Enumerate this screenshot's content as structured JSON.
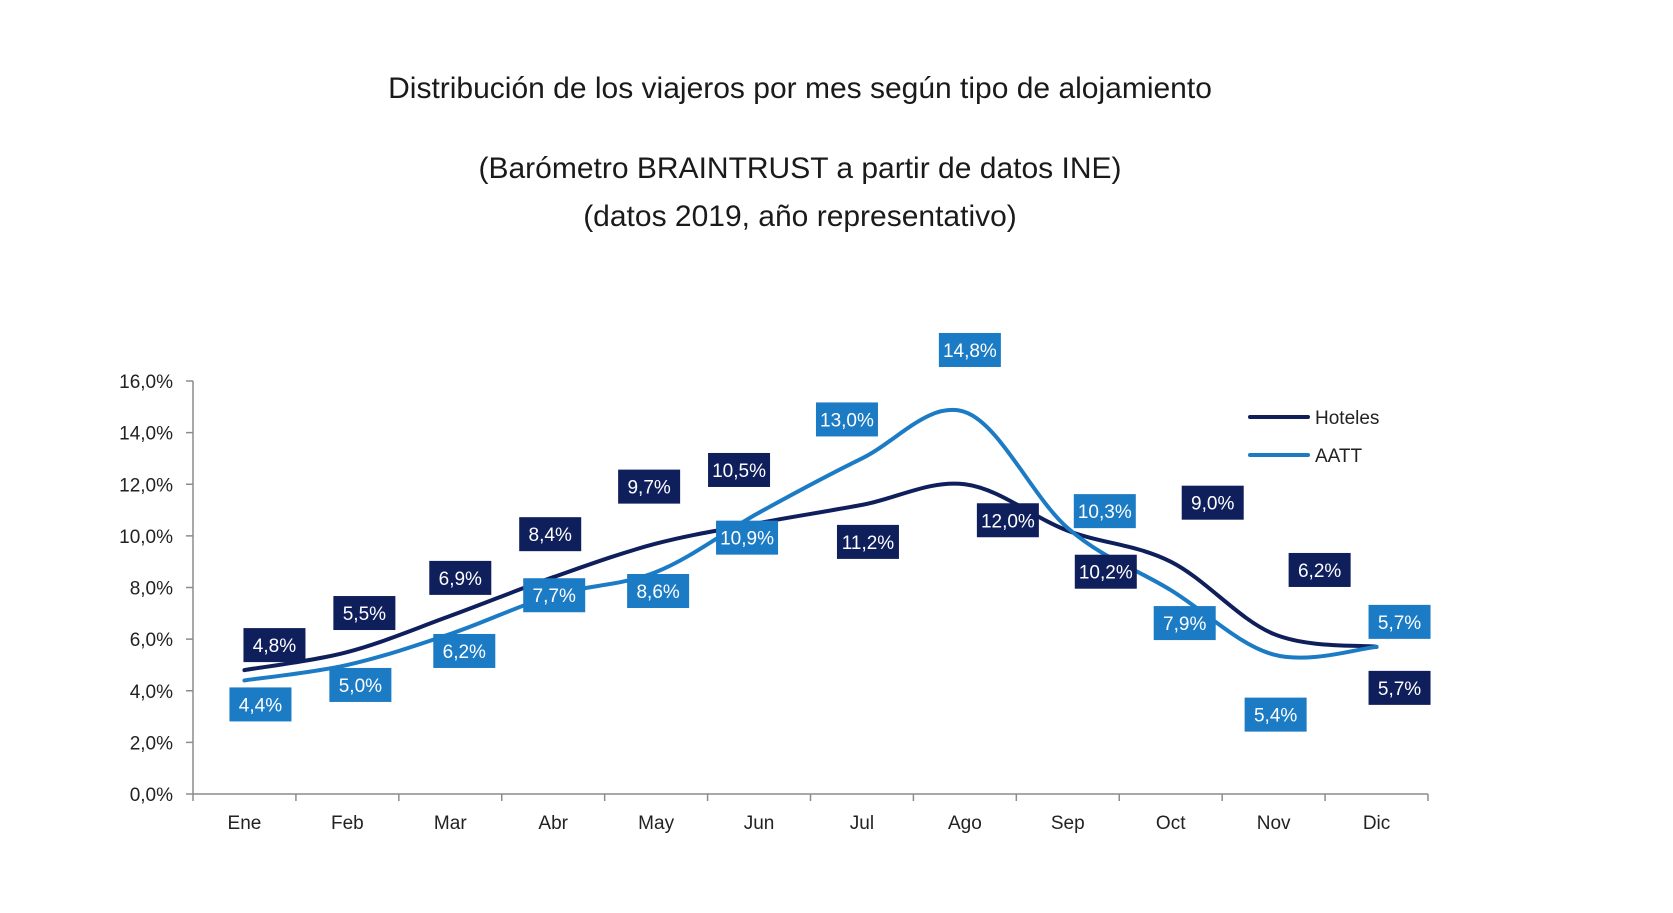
{
  "chart_data": {
    "type": "line",
    "title": "Distribución de los viajeros por mes según tipo de alojamiento",
    "subtitle_lines": [
      "(Barómetro BRAINTRUST a partir de datos INE)",
      "(datos 2019, año representativo)"
    ],
    "categories": [
      "Ene",
      "Feb",
      "Mar",
      "Abr",
      "May",
      "Jun",
      "Jul",
      "Ago",
      "Sep",
      "Oct",
      "Nov",
      "Dic"
    ],
    "series": [
      {
        "name": "Hoteles",
        "color": "#0f1f5c",
        "values": [
          4.8,
          5.5,
          6.9,
          8.4,
          9.7,
          10.5,
          11.2,
          12.0,
          10.2,
          9.0,
          6.2,
          5.7
        ],
        "labels": [
          "4,8%",
          "5,5%",
          "6,9%",
          "8,4%",
          "9,7%",
          "10,5%",
          "11,2%",
          "12,0%",
          "10,2%",
          "9,0%",
          "6,2%",
          "5,7%"
        ]
      },
      {
        "name": "AATT",
        "color": "#1b7bc4",
        "values": [
          4.4,
          5.0,
          6.2,
          7.7,
          8.6,
          10.9,
          13.0,
          14.8,
          10.3,
          7.9,
          5.4,
          5.7
        ],
        "labels": [
          "4,4%",
          "5,0%",
          "6,2%",
          "7,7%",
          "8,6%",
          "10,9%",
          "13,0%",
          "14,8%",
          "10,3%",
          "7,9%",
          "5,4%",
          "5,7%"
        ]
      }
    ],
    "y_ticks": [
      0,
      2,
      4,
      6,
      8,
      10,
      12,
      14,
      16
    ],
    "y_tick_labels": [
      "0,0%",
      "2,0%",
      "4,0%",
      "6,0%",
      "8,0%",
      "10,0%",
      "12,0%",
      "14,0%",
      "16,0%"
    ],
    "ylim": [
      0,
      16
    ],
    "grid": false,
    "legend_position": "top-right"
  }
}
